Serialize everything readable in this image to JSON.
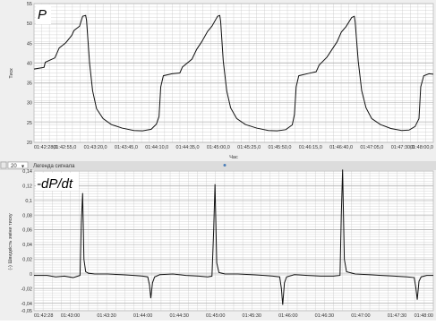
{
  "toolbar": {
    "zoom_value": "20",
    "legend_label": "Легенда сигнала"
  },
  "chart_data": [
    {
      "type": "line",
      "panel_label": "P",
      "ylabel": "Тиск",
      "xlabel": "Час",
      "ylim": [
        20,
        55
      ],
      "yticks": [
        20,
        25,
        30,
        35,
        40,
        45,
        50,
        55
      ],
      "xticklabels": [
        "01:42:28,0",
        "01:42:55,0",
        "01:43:20,0",
        "01:43:45,0",
        "01:44:10,0",
        "01:44:35,0",
        "01:45:00,0",
        "01:45:25,0",
        "01:45:50,0",
        "01:46:15,0",
        "01:46:40,0",
        "01:47:05,0",
        "01:47:30,0",
        "01:48:00,0"
      ],
      "xrange_s": [
        0,
        92
      ],
      "grid": true,
      "colors": {
        "line": "#111111",
        "grid": "#c4c4c4",
        "plot_bg": "#ffffff",
        "frame": "#b9b9b9"
      },
      "series": [
        {
          "values": [
            [
              0,
              38.5
            ],
            [
              2.3,
              38.9
            ],
            [
              2.6,
              40.2
            ],
            [
              4.8,
              41.3
            ],
            [
              5.8,
              43.8
            ],
            [
              7.3,
              45.1
            ],
            [
              8.7,
              47.0
            ],
            [
              9.2,
              48.2
            ],
            [
              10.5,
              49.3
            ],
            [
              11.2,
              51.8
            ],
            [
              11.9,
              52.0
            ],
            [
              12.1,
              50.8
            ],
            [
              12.8,
              40.0
            ],
            [
              13.5,
              33.0
            ],
            [
              14.4,
              28.5
            ],
            [
              15.9,
              26.0
            ],
            [
              17.8,
              24.5
            ],
            [
              20.3,
              23.6
            ],
            [
              23.0,
              23.0
            ],
            [
              25.0,
              22.9
            ],
            [
              27.0,
              23.3
            ],
            [
              28.2,
              24.6
            ],
            [
              28.8,
              26.5
            ],
            [
              29.2,
              34.0
            ],
            [
              29.8,
              36.8
            ],
            [
              31.8,
              37.3
            ],
            [
              33.6,
              37.5
            ],
            [
              34.2,
              39.0
            ],
            [
              36.4,
              41.0
            ],
            [
              37.5,
              43.5
            ],
            [
              38.6,
              45.3
            ],
            [
              40.0,
              48.0
            ],
            [
              41.0,
              49.3
            ],
            [
              42.3,
              51.8
            ],
            [
              42.8,
              52.0
            ],
            [
              43.0,
              50.5
            ],
            [
              43.6,
              40.5
            ],
            [
              44.4,
              33.0
            ],
            [
              45.3,
              28.7
            ],
            [
              46.7,
              26.0
            ],
            [
              48.7,
              24.5
            ],
            [
              51.3,
              23.6
            ],
            [
              54.0,
              23.0
            ],
            [
              56.0,
              22.9
            ],
            [
              58.0,
              23.2
            ],
            [
              59.5,
              24.4
            ],
            [
              60.0,
              27.0
            ],
            [
              60.4,
              34.0
            ],
            [
              61.0,
              36.8
            ],
            [
              63.3,
              37.4
            ],
            [
              65.0,
              37.8
            ],
            [
              65.7,
              39.5
            ],
            [
              67.5,
              41.5
            ],
            [
              68.7,
              43.5
            ],
            [
              69.8,
              45.3
            ],
            [
              70.8,
              47.8
            ],
            [
              71.9,
              49.2
            ],
            [
              73.2,
              51.5
            ],
            [
              73.8,
              51.8
            ],
            [
              74.0,
              50.3
            ],
            [
              74.7,
              40.5
            ],
            [
              75.5,
              33.0
            ],
            [
              76.5,
              28.7
            ],
            [
              77.8,
              26.0
            ],
            [
              79.8,
              24.5
            ],
            [
              82.2,
              23.5
            ],
            [
              84.7,
              23.0
            ],
            [
              86.4,
              23.1
            ],
            [
              87.8,
              24.0
            ],
            [
              88.7,
              26.0
            ],
            [
              89.1,
              34.0
            ],
            [
              89.8,
              36.8
            ],
            [
              91.0,
              37.3
            ],
            [
              92.0,
              37.2
            ]
          ]
        }
      ]
    },
    {
      "type": "line",
      "panel_label": "-dP/dt",
      "ylabel": "(-) Швидкість зміни тиску",
      "xlabel": "",
      "ylim": [
        -0.05,
        0.14
      ],
      "yticks": [
        -0.05,
        -0.04,
        -0.02,
        0,
        0.02,
        0.04,
        0.06,
        0.08,
        0.1,
        0.12,
        0.14
      ],
      "yticklabels": [
        "-0,05",
        "-0,04",
        "-0,02",
        "0",
        "0,02",
        "0,04",
        "0,06",
        "0,08",
        "0,1",
        "0,12",
        "0,14"
      ],
      "xticklabels": [
        "01:42:28",
        "01:43:00",
        "01:43:30",
        "01:44:00",
        "01:44:30",
        "01:45:00",
        "01:45:30",
        "01:46:00",
        "01:46:30",
        "01:47:00",
        "01:47:30",
        "01:48:00"
      ],
      "xrange_s": [
        0,
        92
      ],
      "grid": true,
      "colors": {
        "line": "#111111",
        "grid": "#c4c4c4",
        "plot_bg": "#ffffff",
        "frame": "#b9b9b9"
      },
      "series": [
        {
          "values": [
            [
              0,
              -0.002
            ],
            [
              3,
              -0.002
            ],
            [
              5,
              -0.004
            ],
            [
              7,
              -0.003
            ],
            [
              9,
              -0.005
            ],
            [
              10.6,
              -0.002
            ],
            [
              10.9,
              0.07
            ],
            [
              11.2,
              0.11
            ],
            [
              11.5,
              0.02
            ],
            [
              11.9,
              0.003
            ],
            [
              12.5,
              0.001
            ],
            [
              14,
              0.0
            ],
            [
              17,
              0.0
            ],
            [
              20,
              -0.001
            ],
            [
              23,
              -0.002
            ],
            [
              25,
              -0.003
            ],
            [
              26.2,
              -0.004
            ],
            [
              26.6,
              -0.015
            ],
            [
              26.9,
              -0.033
            ],
            [
              27.3,
              -0.012
            ],
            [
              27.8,
              -0.004
            ],
            [
              29,
              -0.001
            ],
            [
              32,
              0.0
            ],
            [
              35,
              -0.002
            ],
            [
              38,
              -0.003
            ],
            [
              40,
              -0.004
            ],
            [
              41.0,
              -0.003
            ],
            [
              41.4,
              0.06
            ],
            [
              41.7,
              0.122
            ],
            [
              42.1,
              0.015
            ],
            [
              42.6,
              0.002
            ],
            [
              44,
              0.0
            ],
            [
              47,
              0.0
            ],
            [
              50,
              -0.001
            ],
            [
              53,
              -0.002
            ],
            [
              55,
              -0.003
            ],
            [
              56.6,
              -0.004
            ],
            [
              57.0,
              -0.02
            ],
            [
              57.3,
              -0.042
            ],
            [
              57.7,
              -0.012
            ],
            [
              58.2,
              -0.004
            ],
            [
              60,
              -0.001
            ],
            [
              63,
              -0.002
            ],
            [
              66,
              -0.003
            ],
            [
              69,
              -0.003
            ],
            [
              70.5,
              -0.002
            ],
            [
              70.8,
              0.08
            ],
            [
              71.1,
              0.142
            ],
            [
              71.5,
              0.02
            ],
            [
              72.0,
              0.003
            ],
            [
              74,
              0.0
            ],
            [
              77,
              -0.001
            ],
            [
              80,
              -0.002
            ],
            [
              83,
              -0.003
            ],
            [
              86,
              -0.004
            ],
            [
              87.6,
              -0.005
            ],
            [
              88.0,
              -0.02
            ],
            [
              88.3,
              -0.035
            ],
            [
              88.7,
              -0.01
            ],
            [
              89.2,
              -0.004
            ],
            [
              90.5,
              -0.002
            ],
            [
              92,
              -0.002
            ]
          ]
        }
      ]
    }
  ]
}
